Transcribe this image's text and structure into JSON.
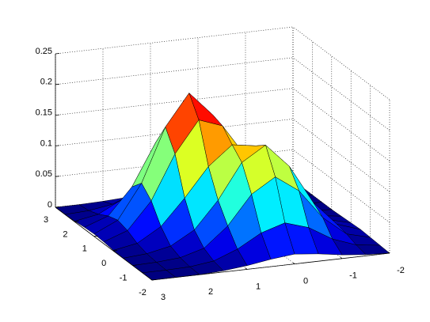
{
  "chart_data": {
    "type": "surface",
    "x": [
      -2,
      -1.5,
      -1,
      -0.5,
      0,
      0.5,
      1,
      1.5,
      2,
      2.5,
      3
    ],
    "y": [
      -2,
      -1.5,
      -1,
      -0.5,
      0,
      0.5,
      1,
      1.5,
      2,
      2.5,
      3
    ],
    "z": [
      [
        0,
        0.002,
        0.006,
        0.012,
        0.016,
        0.012,
        0.006,
        0.002,
        0,
        0,
        0
      ],
      [
        0.001,
        0.006,
        0.02,
        0.043,
        0.055,
        0.043,
        0.021,
        0.006,
        0.001,
        0,
        0
      ],
      [
        0.002,
        0.012,
        0.043,
        0.091,
        0.118,
        0.094,
        0.047,
        0.015,
        0.004,
        0.001,
        0
      ],
      [
        0.003,
        0.016,
        0.056,
        0.119,
        0.158,
        0.134,
        0.077,
        0.033,
        0.011,
        0.003,
        0
      ],
      [
        0.002,
        0.012,
        0.044,
        0.099,
        0.145,
        0.151,
        0.12,
        0.073,
        0.031,
        0.008,
        0.001
      ],
      [
        0.001,
        0.006,
        0.023,
        0.06,
        0.115,
        0.17,
        0.184,
        0.133,
        0.061,
        0.017,
        0.003
      ],
      [
        0,
        0.002,
        0.01,
        0.034,
        0.093,
        0.176,
        0.216,
        0.165,
        0.078,
        0.022,
        0.004
      ],
      [
        0,
        0.001,
        0.004,
        0.019,
        0.063,
        0.13,
        0.165,
        0.128,
        0.06,
        0.017,
        0.003
      ],
      [
        0,
        0,
        0.001,
        0.008,
        0.029,
        0.06,
        0.077,
        0.06,
        0.028,
        0.008,
        0.001
      ],
      [
        0,
        0,
        0,
        0.002,
        0.008,
        0.017,
        0.022,
        0.017,
        0.008,
        0.002,
        0
      ],
      [
        0,
        0,
        0,
        0,
        0.001,
        0.003,
        0.004,
        0.003,
        0.001,
        0,
        0
      ]
    ],
    "xlim": [
      -2,
      3
    ],
    "ylim": [
      -2,
      3
    ],
    "zlim": [
      0,
      0.25
    ],
    "xticks": [
      -2,
      -1,
      0,
      1,
      2,
      3
    ],
    "yticks": [
      -2,
      -1,
      0,
      1,
      2,
      3
    ],
    "zticks": [
      0,
      0.05,
      0.1,
      0.15,
      0.2,
      0.25
    ],
    "xdir": "reverse",
    "grid": true,
    "colormap": "jet"
  }
}
